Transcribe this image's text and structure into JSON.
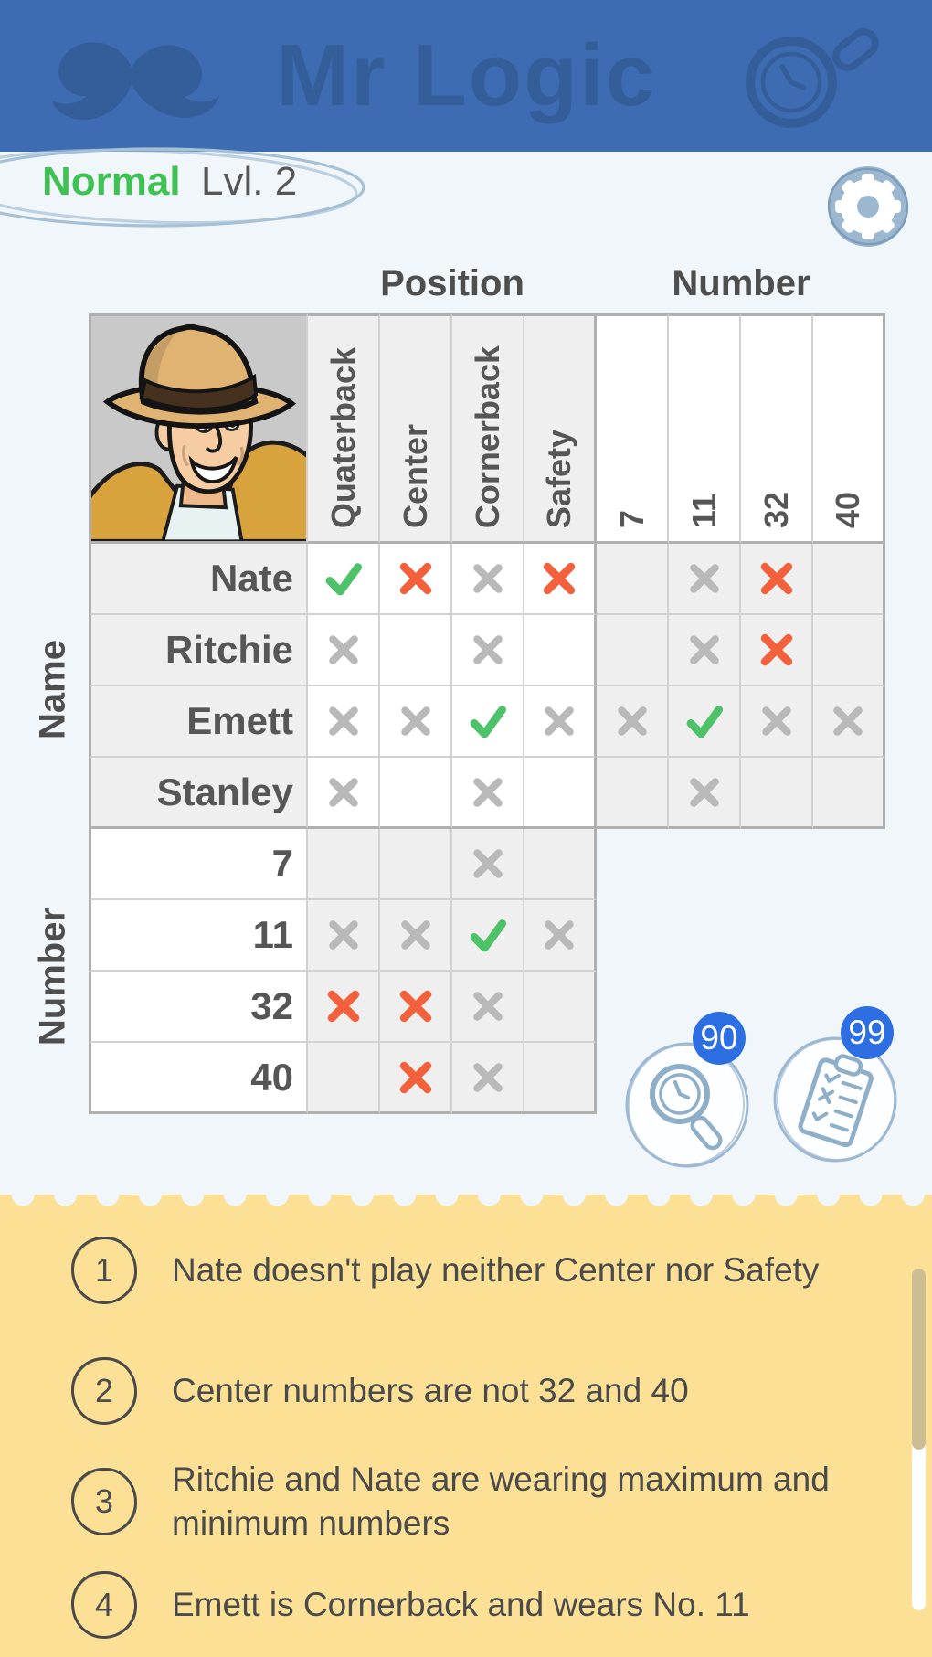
{
  "header": {
    "title": "Mr Logic"
  },
  "level_bar": {
    "difficulty": "Normal",
    "level_label": "Lvl. 2"
  },
  "board": {
    "group_headers": [
      {
        "label": "Position"
      },
      {
        "label": "Number"
      }
    ],
    "side_labels": [
      {
        "label": "Name"
      },
      {
        "label": "Number"
      }
    ],
    "columns": [
      "Quaterback",
      "Center",
      "Cornerback",
      "Safety",
      "7",
      "11",
      "32",
      "40"
    ],
    "rows": [
      {
        "label": "Nate",
        "group": "name",
        "marks": [
          "check",
          "x-red",
          "x-gray",
          "x-red",
          "",
          "x-gray",
          "x-red",
          ""
        ]
      },
      {
        "label": "Ritchie",
        "group": "name",
        "marks": [
          "x-gray",
          "",
          "x-gray",
          "",
          "",
          "x-gray",
          "x-red",
          ""
        ]
      },
      {
        "label": "Emett",
        "group": "name",
        "marks": [
          "x-gray",
          "x-gray",
          "check",
          "x-gray",
          "x-gray",
          "check",
          "x-gray",
          "x-gray"
        ]
      },
      {
        "label": "Stanley",
        "group": "name",
        "marks": [
          "x-gray",
          "",
          "x-gray",
          "",
          "",
          "x-gray",
          "",
          ""
        ]
      },
      {
        "label": "7",
        "group": "number",
        "marks": [
          "",
          "",
          "x-gray",
          ""
        ]
      },
      {
        "label": "11",
        "group": "number",
        "marks": [
          "x-gray",
          "x-gray",
          "check",
          "x-gray"
        ]
      },
      {
        "label": "32",
        "group": "number",
        "marks": [
          "x-red",
          "x-red",
          "x-gray",
          ""
        ]
      },
      {
        "label": "40",
        "group": "number",
        "marks": [
          "",
          "x-red",
          "x-gray",
          ""
        ]
      }
    ]
  },
  "tools": {
    "hint_button": {
      "count": "90",
      "icon": "magnifier-clock-icon"
    },
    "solution_button": {
      "count": "99",
      "icon": "clipboard-checklist-icon"
    }
  },
  "hints": {
    "items": [
      {
        "number": "1",
        "text": "Nate doesn't play neither Center nor Safety"
      },
      {
        "number": "2",
        "text": "Center numbers are not 32 and 40"
      },
      {
        "number": "3",
        "text": "Ritchie and Nate are wearing maximum and minimum numbers"
      },
      {
        "number": "4",
        "text": "Emett is Cornerback and wears No. 11"
      }
    ]
  },
  "colors": {
    "header_blue": "#3e6cb2",
    "header_ink": "#345e9a",
    "page_bg": "#f0f6fa",
    "panel_yellow": "#fbe096",
    "difficulty_green": "#3fc153",
    "check_green": "#4dc268",
    "cross_red": "#f2603c",
    "cross_gray": "#b9b9b9",
    "badge_blue": "#2d6fe2",
    "gear_blue": "#9cb7d0",
    "sketch_blue": "#a6c0d6",
    "cell_gray": "#efefef",
    "grid_line": "#d2d2d2",
    "grid_line_strong": "#b0b0b0",
    "hint_ink": "#4a4a4a",
    "scroll_thumb": "#ccbe92"
  }
}
